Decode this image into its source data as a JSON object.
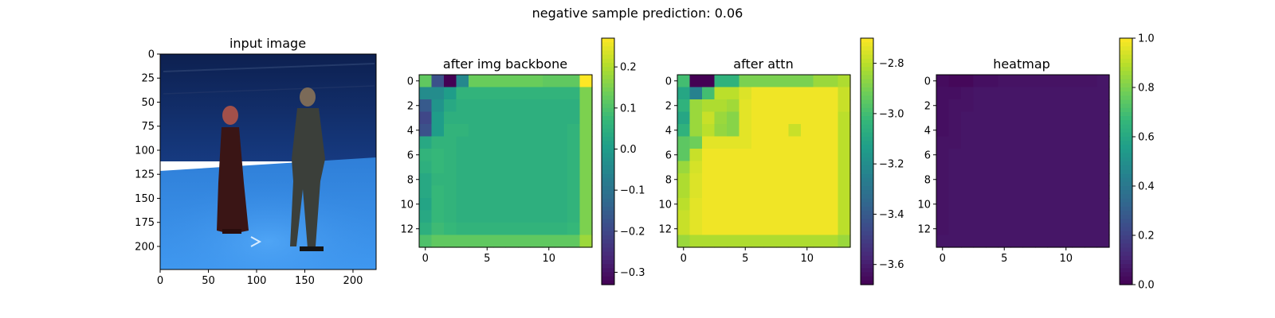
{
  "figure": {
    "suptitle": "negative sample     prediction: 0.06"
  },
  "colors": {
    "viridis": [
      "#440154",
      "#482878",
      "#3e4989",
      "#31688e",
      "#26828e",
      "#1f9e89",
      "#35b779",
      "#6ece58",
      "#b5de2b",
      "#fde725"
    ],
    "room_wall": "#0f2a66",
    "room_floor": "#3b8ee6"
  },
  "chart_data": [
    {
      "type": "image",
      "title": "input image",
      "xlim": [
        0,
        224
      ],
      "ylim": [
        224,
        0
      ],
      "x_ticks": [
        0,
        50,
        100,
        150,
        200
      ],
      "y_ticks": [
        0,
        25,
        50,
        75,
        100,
        125,
        150,
        175,
        200
      ],
      "x_tick_labels": [
        "0",
        "50",
        "100",
        "150",
        "200"
      ],
      "y_tick_labels": [
        "0",
        "25",
        "50",
        "75",
        "100",
        "125",
        "150",
        "175",
        "200"
      ]
    },
    {
      "type": "heatmap",
      "title": "after img backbone",
      "grid_size": 14,
      "x_ticks": [
        0,
        5,
        10
      ],
      "y_ticks": [
        0,
        2,
        4,
        6,
        8,
        10,
        12
      ],
      "x_tick_labels": [
        "0",
        "5",
        "10"
      ],
      "y_tick_labels": [
        "0",
        "2",
        "4",
        "6",
        "8",
        "10",
        "12"
      ],
      "colorbar": {
        "vmin": -0.33,
        "vmax": 0.27,
        "ticks": [
          -0.3,
          -0.2,
          -0.1,
          0.0,
          0.1,
          0.2
        ],
        "tick_labels": [
          "−0.3",
          "−0.2",
          "−0.1",
          "0.0",
          "0.1",
          "0.2"
        ]
      },
      "values": [
        [
          0.12,
          -0.18,
          -0.33,
          -0.05,
          0.13,
          0.13,
          0.13,
          0.13,
          0.13,
          0.13,
          0.12,
          0.12,
          0.12,
          0.27
        ],
        [
          -0.04,
          -0.04,
          0.0,
          0.06,
          0.06,
          0.06,
          0.06,
          0.06,
          0.06,
          0.06,
          0.06,
          0.06,
          0.06,
          0.15
        ],
        [
          -0.16,
          -0.02,
          0.03,
          0.05,
          0.05,
          0.05,
          0.05,
          0.05,
          0.05,
          0.05,
          0.05,
          0.05,
          0.05,
          0.15
        ],
        [
          -0.2,
          0.0,
          0.05,
          0.05,
          0.05,
          0.05,
          0.05,
          0.05,
          0.05,
          0.05,
          0.05,
          0.05,
          0.05,
          0.15
        ],
        [
          -0.18,
          0.0,
          0.06,
          0.06,
          0.05,
          0.05,
          0.05,
          0.05,
          0.05,
          0.05,
          0.05,
          0.05,
          0.06,
          0.15
        ],
        [
          0.03,
          0.06,
          0.06,
          0.05,
          0.05,
          0.05,
          0.05,
          0.05,
          0.05,
          0.05,
          0.05,
          0.05,
          0.06,
          0.15
        ],
        [
          0.06,
          0.07,
          0.06,
          0.05,
          0.05,
          0.05,
          0.05,
          0.05,
          0.05,
          0.05,
          0.05,
          0.05,
          0.06,
          0.15
        ],
        [
          0.05,
          0.07,
          0.06,
          0.05,
          0.05,
          0.05,
          0.05,
          0.05,
          0.05,
          0.05,
          0.05,
          0.05,
          0.06,
          0.15
        ],
        [
          0.03,
          0.06,
          0.06,
          0.05,
          0.05,
          0.05,
          0.05,
          0.05,
          0.05,
          0.05,
          0.05,
          0.05,
          0.06,
          0.15
        ],
        [
          0.03,
          0.07,
          0.06,
          0.05,
          0.05,
          0.05,
          0.05,
          0.05,
          0.05,
          0.05,
          0.05,
          0.05,
          0.06,
          0.15
        ],
        [
          0.02,
          0.07,
          0.06,
          0.05,
          0.05,
          0.05,
          0.05,
          0.05,
          0.05,
          0.05,
          0.05,
          0.05,
          0.06,
          0.15
        ],
        [
          0.03,
          0.07,
          0.06,
          0.05,
          0.05,
          0.05,
          0.05,
          0.05,
          0.05,
          0.05,
          0.05,
          0.05,
          0.06,
          0.15
        ],
        [
          0.05,
          0.08,
          0.07,
          0.06,
          0.06,
          0.06,
          0.06,
          0.06,
          0.06,
          0.06,
          0.06,
          0.06,
          0.07,
          0.15
        ],
        [
          0.1,
          0.12,
          0.12,
          0.12,
          0.12,
          0.12,
          0.12,
          0.12,
          0.12,
          0.12,
          0.12,
          0.12,
          0.12,
          0.18
        ]
      ]
    },
    {
      "type": "heatmap",
      "title": "after attn",
      "grid_size": 14,
      "x_ticks": [
        0,
        5,
        10
      ],
      "y_ticks": [
        0,
        2,
        4,
        6,
        8,
        10,
        12
      ],
      "x_tick_labels": [
        "0",
        "5",
        "10"
      ],
      "y_tick_labels": [
        "0",
        "2",
        "4",
        "6",
        "8",
        "10",
        "12"
      ],
      "colorbar": {
        "vmin": -3.68,
        "vmax": -2.7,
        "ticks": [
          -3.6,
          -3.4,
          -3.2,
          -3.0,
          -2.8
        ],
        "tick_labels": [
          "−3.6",
          "−3.4",
          "−3.2",
          "−3.0",
          "−2.8"
        ]
      },
      "values": [
        [
          -3.0,
          -3.68,
          -3.68,
          -3.05,
          -3.05,
          -2.9,
          -2.9,
          -2.9,
          -2.9,
          -2.9,
          -2.9,
          -2.85,
          -2.85,
          -2.82
        ],
        [
          -3.1,
          -3.25,
          -3.0,
          -2.8,
          -2.8,
          -2.75,
          -2.72,
          -2.72,
          -2.72,
          -2.72,
          -2.72,
          -2.72,
          -2.72,
          -2.78
        ],
        [
          -3.05,
          -2.85,
          -2.82,
          -2.82,
          -2.84,
          -2.74,
          -2.72,
          -2.72,
          -2.72,
          -2.72,
          -2.72,
          -2.72,
          -2.72,
          -2.78
        ],
        [
          -3.1,
          -2.85,
          -2.78,
          -2.85,
          -2.88,
          -2.74,
          -2.72,
          -2.72,
          -2.72,
          -2.72,
          -2.72,
          -2.72,
          -2.72,
          -2.8
        ],
        [
          -3.05,
          -2.85,
          -2.8,
          -2.86,
          -2.88,
          -2.74,
          -2.72,
          -2.72,
          -2.72,
          -2.78,
          -2.72,
          -2.72,
          -2.72,
          -2.8
        ],
        [
          -2.95,
          -2.92,
          -2.74,
          -2.74,
          -2.74,
          -2.74,
          -2.72,
          -2.72,
          -2.72,
          -2.72,
          -2.72,
          -2.72,
          -2.72,
          -2.8
        ],
        [
          -2.95,
          -2.78,
          -2.72,
          -2.72,
          -2.72,
          -2.72,
          -2.72,
          -2.72,
          -2.72,
          -2.72,
          -2.72,
          -2.72,
          -2.72,
          -2.8
        ],
        [
          -2.85,
          -2.76,
          -2.72,
          -2.72,
          -2.72,
          -2.72,
          -2.72,
          -2.72,
          -2.72,
          -2.72,
          -2.72,
          -2.72,
          -2.72,
          -2.8
        ],
        [
          -2.82,
          -2.75,
          -2.72,
          -2.72,
          -2.72,
          -2.72,
          -2.72,
          -2.72,
          -2.72,
          -2.72,
          -2.72,
          -2.72,
          -2.72,
          -2.8
        ],
        [
          -2.82,
          -2.75,
          -2.72,
          -2.72,
          -2.72,
          -2.72,
          -2.72,
          -2.72,
          -2.72,
          -2.72,
          -2.72,
          -2.72,
          -2.72,
          -2.8
        ],
        [
          -2.8,
          -2.74,
          -2.72,
          -2.72,
          -2.72,
          -2.72,
          -2.72,
          -2.72,
          -2.72,
          -2.72,
          -2.72,
          -2.72,
          -2.72,
          -2.8
        ],
        [
          -2.78,
          -2.74,
          -2.72,
          -2.72,
          -2.72,
          -2.72,
          -2.72,
          -2.72,
          -2.72,
          -2.72,
          -2.72,
          -2.72,
          -2.72,
          -2.8
        ],
        [
          -2.78,
          -2.74,
          -2.72,
          -2.72,
          -2.72,
          -2.72,
          -2.72,
          -2.72,
          -2.72,
          -2.72,
          -2.72,
          -2.72,
          -2.72,
          -2.8
        ],
        [
          -2.85,
          -2.82,
          -2.82,
          -2.82,
          -2.82,
          -2.82,
          -2.82,
          -2.82,
          -2.82,
          -2.82,
          -2.82,
          -2.82,
          -2.82,
          -2.85
        ]
      ]
    },
    {
      "type": "heatmap",
      "title": "heatmap",
      "grid_size": 14,
      "x_ticks": [
        0,
        5,
        10
      ],
      "y_ticks": [
        0,
        2,
        4,
        6,
        8,
        10,
        12
      ],
      "x_tick_labels": [
        "0",
        "5",
        "10"
      ],
      "y_tick_labels": [
        "0",
        "2",
        "4",
        "6",
        "8",
        "10",
        "12"
      ],
      "colorbar": {
        "vmin": 0.0,
        "vmax": 1.0,
        "ticks": [
          0.0,
          0.2,
          0.4,
          0.6,
          0.8,
          1.0
        ],
        "tick_labels": [
          "0.0",
          "0.2",
          "0.4",
          "0.6",
          "0.8",
          "1.0"
        ]
      },
      "values": [
        [
          0.03,
          0.02,
          0.02,
          0.04,
          0.04,
          0.05,
          0.05,
          0.05,
          0.05,
          0.05,
          0.05,
          0.05,
          0.05,
          0.06
        ],
        [
          0.04,
          0.04,
          0.05,
          0.06,
          0.06,
          0.06,
          0.06,
          0.06,
          0.06,
          0.06,
          0.06,
          0.06,
          0.06,
          0.06
        ],
        [
          0.04,
          0.05,
          0.05,
          0.06,
          0.06,
          0.06,
          0.06,
          0.06,
          0.06,
          0.06,
          0.06,
          0.06,
          0.06,
          0.06
        ],
        [
          0.04,
          0.05,
          0.06,
          0.06,
          0.06,
          0.06,
          0.06,
          0.06,
          0.06,
          0.06,
          0.06,
          0.06,
          0.06,
          0.06
        ],
        [
          0.04,
          0.05,
          0.06,
          0.06,
          0.06,
          0.06,
          0.06,
          0.06,
          0.06,
          0.06,
          0.06,
          0.06,
          0.06,
          0.06
        ],
        [
          0.05,
          0.05,
          0.06,
          0.06,
          0.06,
          0.06,
          0.06,
          0.06,
          0.06,
          0.06,
          0.06,
          0.06,
          0.06,
          0.06
        ],
        [
          0.05,
          0.06,
          0.06,
          0.06,
          0.06,
          0.06,
          0.06,
          0.06,
          0.06,
          0.06,
          0.06,
          0.06,
          0.06,
          0.06
        ],
        [
          0.05,
          0.06,
          0.06,
          0.06,
          0.06,
          0.06,
          0.06,
          0.06,
          0.06,
          0.06,
          0.06,
          0.06,
          0.06,
          0.06
        ],
        [
          0.05,
          0.06,
          0.06,
          0.06,
          0.06,
          0.06,
          0.06,
          0.06,
          0.06,
          0.06,
          0.06,
          0.06,
          0.06,
          0.06
        ],
        [
          0.05,
          0.06,
          0.06,
          0.06,
          0.06,
          0.06,
          0.06,
          0.06,
          0.06,
          0.06,
          0.06,
          0.06,
          0.06,
          0.06
        ],
        [
          0.05,
          0.06,
          0.06,
          0.06,
          0.06,
          0.06,
          0.06,
          0.06,
          0.06,
          0.06,
          0.06,
          0.06,
          0.06,
          0.06
        ],
        [
          0.05,
          0.06,
          0.06,
          0.06,
          0.06,
          0.06,
          0.06,
          0.06,
          0.06,
          0.06,
          0.06,
          0.06,
          0.06,
          0.06
        ],
        [
          0.05,
          0.06,
          0.06,
          0.06,
          0.06,
          0.06,
          0.06,
          0.06,
          0.06,
          0.06,
          0.06,
          0.06,
          0.06,
          0.06
        ],
        [
          0.06,
          0.06,
          0.06,
          0.06,
          0.06,
          0.06,
          0.06,
          0.06,
          0.06,
          0.06,
          0.06,
          0.06,
          0.06,
          0.06
        ]
      ]
    }
  ]
}
